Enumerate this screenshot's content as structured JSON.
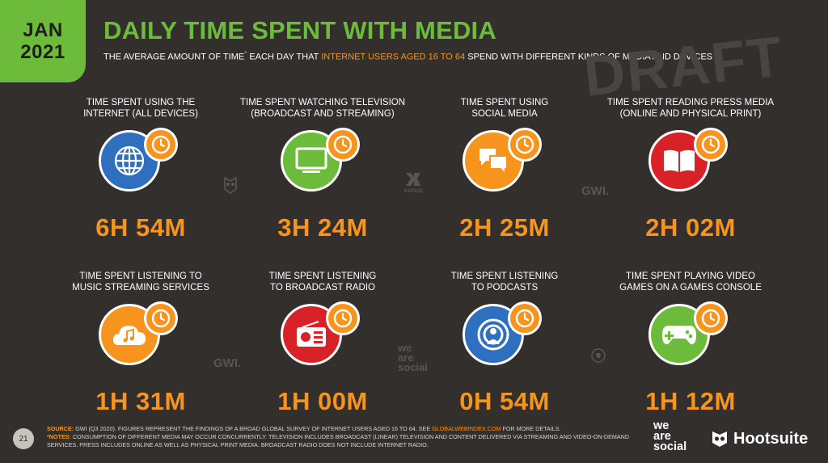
{
  "header": {
    "month": "JAN",
    "year": "2021",
    "title": "DAILY TIME SPENT WITH MEDIA",
    "subtitle_pre": "THE AVERAGE AMOUNT OF TIME",
    "subtitle_star": "*",
    "subtitle_mid": " EACH DAY THAT ",
    "subtitle_highlight": "INTERNET USERS AGED 16 TO 64",
    "subtitle_post": " SPEND WITH DIFFERENT KINDS OF MEDIA AND DEVICES",
    "watermark": "DRAFT"
  },
  "colors": {
    "background": "#332f2c",
    "accent_green": "#6dbb3a",
    "accent_orange": "#f7941d",
    "internet": "#2e6fc0",
    "television": "#6dbb3a",
    "social": "#f7941d",
    "press": "#d92128",
    "music": "#f7941d",
    "radio": "#d92128",
    "podcasts": "#2e6fc0",
    "games": "#6dbb3a"
  },
  "cards": [
    {
      "line1": "TIME SPENT USING THE",
      "line2": "INTERNET (ALL DEVICES)",
      "value": "6H 54M",
      "icon": "globe-icon"
    },
    {
      "line1": "TIME SPENT WATCHING TELEVISION",
      "line2": "(BROADCAST AND STREAMING)",
      "value": "3H 24M",
      "icon": "television-icon"
    },
    {
      "line1": "TIME SPENT USING",
      "line2": "SOCIAL MEDIA",
      "value": "2H 25M",
      "icon": "chat-bubbles-icon"
    },
    {
      "line1": "TIME SPENT READING PRESS MEDIA",
      "line2": "(ONLINE AND PHYSICAL PRINT)",
      "value": "2H 02M",
      "icon": "open-book-icon"
    },
    {
      "line1": "TIME SPENT LISTENING TO",
      "line2": "MUSIC STREAMING SERVICES",
      "value": "1H 31M",
      "icon": "music-cloud-icon"
    },
    {
      "line1": "TIME SPENT LISTENING",
      "line2": "TO BROADCAST RADIO",
      "value": "1H 00M",
      "icon": "radio-icon"
    },
    {
      "line1": "TIME SPENT LISTENING",
      "line2": "TO PODCASTS",
      "value": "0H 54M",
      "icon": "podcast-icon"
    },
    {
      "line1": "TIME SPENT PLAYING VIDEO",
      "line2": "GAMES ON A GAMES CONSOLE",
      "value": "1H 12M",
      "icon": "gamepad-icon"
    }
  ],
  "watermarks": {
    "gwi": "GWI.",
    "kepios": "KEPIOS",
    "ws1": "we",
    "ws2": "are",
    "ws3": "social"
  },
  "footer": {
    "page_number": "21",
    "source_label": "SOURCE:",
    "source_text": " GWI (Q3 2020). FIGURES REPRESENT THE FINDINGS OF A BROAD GLOBAL SURVEY OF INTERNET USERS AGED 16 TO 64. SEE ",
    "source_link": "GLOBALWEBINDEX.COM",
    "source_end": " FOR MORE DETAILS.",
    "notes_label": "*NOTES:",
    "notes_text": " CONSUMPTION OF DIFFERENT MEDIA MAY OCCUR CONCURRENTLY. TELEVISION INCLUDES BROADCAST (LINEAR) TELEVISION AND CONTENT DELIVERED VIA STREAMING AND VIDEO-ON-DEMAND SERVICES. PRESS INCLUDES ONLINE AS WELL AS PHYSICAL PRINT MEDIA. BROADCAST RADIO DOES NOT INCLUDE INTERNET RADIO.",
    "logo_ws1": "we",
    "logo_ws2": "are",
    "logo_ws3": "social",
    "logo_hootsuite": "Hootsuite"
  }
}
